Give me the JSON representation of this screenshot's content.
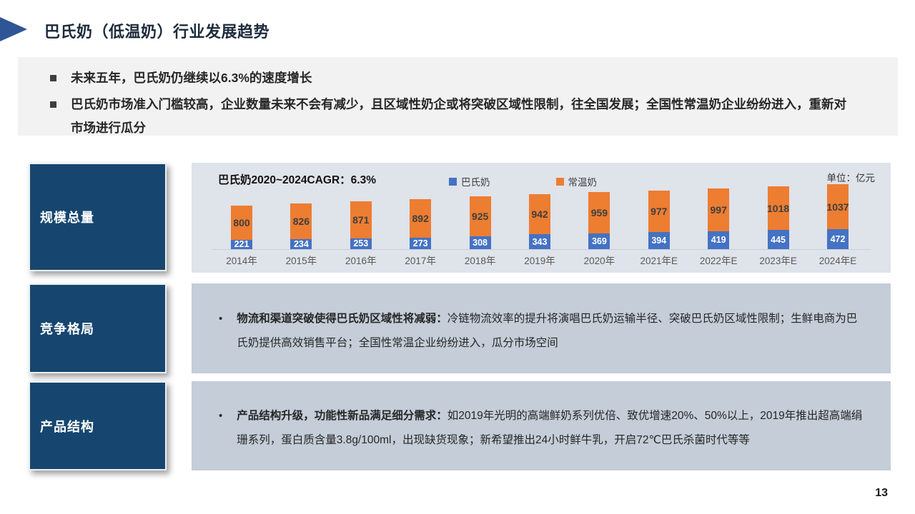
{
  "page": {
    "title": "巴氏奶（低温奶）行业发展趋势",
    "number": "13"
  },
  "summary": {
    "bullets": [
      "未来五年，巴氏奶仍继续以6.3%的速度增长",
      "巴氏奶市场准入门槛较高，企业数量未来不会有减少，且区域性奶企或将突破区域性限制，往全国发展；全国性常温奶企业纷纷进入，重新对市场进行瓜分"
    ]
  },
  "sidebar": {
    "items": [
      {
        "label": "规模总量"
      },
      {
        "label": "竞争格局"
      },
      {
        "label": "产品结构"
      }
    ]
  },
  "chart_data": {
    "type": "bar",
    "stacked": true,
    "title": "巴氏奶2020~2024CAGR：6.3%",
    "unit_label": "单位：亿元",
    "categories": [
      "2014年",
      "2015年",
      "2016年",
      "2017年",
      "2018年",
      "2019年",
      "2020年",
      "2021年E",
      "2022年E",
      "2023年E",
      "2024年E"
    ],
    "series": [
      {
        "name": "巴氏奶",
        "color": "#4472c4",
        "values": [
          221,
          234,
          253,
          273,
          308,
          343,
          369,
          394,
          419,
          445,
          472
        ]
      },
      {
        "name": "常温奶",
        "color": "#ed7d31",
        "values": [
          800,
          826,
          871,
          892,
          925,
          942,
          959,
          977,
          997,
          1018,
          1037
        ]
      }
    ],
    "legend_position": "top-center",
    "gridlines": false,
    "value_labels": "inside"
  },
  "sections": [
    {
      "bullet": "•",
      "lead": "物流和渠道突破使得巴氏奶区域性将减弱：",
      "text": "冷链物流效率的提升将演唱巴氏奶运输半径、突破巴氏奶区域性限制；生鲜电商为巴氏奶提供高效销售平台；全国性常温企业纷纷进入，瓜分市场空间"
    },
    {
      "bullet": "•",
      "lead": "产品结构升级，功能性新品满足细分需求：",
      "text": "如2019年光明的高端鲜奶系列优倍、致优增速20%、50%以上，2019年推出超高端绢珊系列，蛋白质含量3.8g/100ml，出现缺货现象；新希望推出24小时鲜牛乳，开启72℃巴氏杀菌时代等等"
    }
  ],
  "colors": {
    "accent_arrow": "#2f5597",
    "navy_box": "#16466f",
    "series_blue": "#4472c4",
    "series_orange": "#ed7d31",
    "chart_panel_bg": "#dfe3ea",
    "text_panel_bg": "#c4cdd8",
    "summary_bg": "#f2f2f2"
  }
}
